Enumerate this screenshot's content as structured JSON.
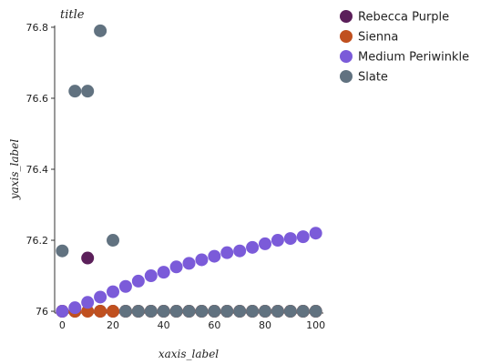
{
  "chart_data": {
    "type": "scatter",
    "title": "title",
    "xlabel": "xaxis_label",
    "ylabel": "yaxis_label",
    "xlim": [
      -3,
      103
    ],
    "ylim": [
      75.995,
      76.805
    ],
    "x_ticks": [
      0,
      20,
      40,
      60,
      80,
      100
    ],
    "y_ticks": [
      76,
      76.2,
      76.4,
      76.6,
      76.8
    ],
    "x_tick_labels": [
      "0",
      "20",
      "40",
      "60",
      "80",
      "100"
    ],
    "y_tick_labels": [
      "76",
      "76.2",
      "76.4",
      "76.6",
      "76.8"
    ],
    "grid": false,
    "legend_position": "right",
    "series": [
      {
        "name": "Rebecca Purple",
        "color": "#5b1f5a",
        "points": [
          [
            0,
            76.0
          ],
          [
            5,
            76.0
          ],
          [
            10,
            76.15
          ],
          [
            15,
            76.0
          ],
          [
            20,
            76.0
          ],
          [
            25,
            76.0
          ],
          [
            30,
            76.0
          ],
          [
            35,
            76.0
          ],
          [
            40,
            76.0
          ],
          [
            45,
            76.0
          ],
          [
            50,
            76.0
          ],
          [
            55,
            76.0
          ],
          [
            60,
            76.0
          ],
          [
            65,
            76.0
          ],
          [
            70,
            76.0
          ],
          [
            75,
            76.0
          ],
          [
            80,
            76.0
          ],
          [
            85,
            76.0
          ],
          [
            90,
            76.0
          ],
          [
            95,
            76.0
          ],
          [
            100,
            76.0
          ]
        ]
      },
      {
        "name": "Sienna",
        "color": "#c0501f",
        "points": [
          [
            0,
            76.0
          ],
          [
            5,
            76.0
          ],
          [
            10,
            76.0
          ],
          [
            15,
            76.0
          ],
          [
            20,
            76.0
          ],
          [
            25,
            76.0
          ],
          [
            30,
            76.0
          ],
          [
            35,
            76.0
          ],
          [
            40,
            76.0
          ],
          [
            45,
            76.0
          ],
          [
            50,
            76.0
          ],
          [
            55,
            76.0
          ],
          [
            60,
            76.0
          ],
          [
            65,
            76.0
          ],
          [
            70,
            76.0
          ],
          [
            75,
            76.0
          ],
          [
            80,
            76.0
          ],
          [
            85,
            76.0
          ],
          [
            90,
            76.0
          ],
          [
            95,
            76.0
          ],
          [
            100,
            76.0
          ]
        ]
      },
      {
        "name": "Medium Periwinkle",
        "color": "#7b5bd9",
        "points": [
          [
            0,
            76.0
          ],
          [
            5,
            76.01
          ],
          [
            10,
            76.025
          ],
          [
            15,
            76.04
          ],
          [
            20,
            76.055
          ],
          [
            25,
            76.07
          ],
          [
            30,
            76.085
          ],
          [
            35,
            76.1
          ],
          [
            40,
            76.11
          ],
          [
            45,
            76.125
          ],
          [
            50,
            76.135
          ],
          [
            55,
            76.145
          ],
          [
            60,
            76.155
          ],
          [
            65,
            76.165
          ],
          [
            70,
            76.17
          ],
          [
            75,
            76.18
          ],
          [
            80,
            76.19
          ],
          [
            85,
            76.2
          ],
          [
            90,
            76.205
          ],
          [
            95,
            76.21
          ],
          [
            100,
            76.22
          ]
        ]
      },
      {
        "name": "Slate",
        "color": "#617280",
        "points": [
          [
            0,
            76.17
          ],
          [
            5,
            76.62
          ],
          [
            10,
            76.62
          ],
          [
            15,
            76.79
          ],
          [
            20,
            76.2
          ],
          [
            25,
            76.0
          ],
          [
            30,
            76.0
          ],
          [
            35,
            76.0
          ],
          [
            40,
            76.0
          ],
          [
            45,
            76.0
          ],
          [
            50,
            76.0
          ],
          [
            55,
            76.0
          ],
          [
            60,
            76.0
          ],
          [
            65,
            76.0
          ],
          [
            70,
            76.0
          ],
          [
            75,
            76.0
          ],
          [
            80,
            76.0
          ],
          [
            85,
            76.0
          ],
          [
            90,
            76.0
          ],
          [
            95,
            76.0
          ],
          [
            100,
            76.0
          ]
        ]
      }
    ]
  }
}
